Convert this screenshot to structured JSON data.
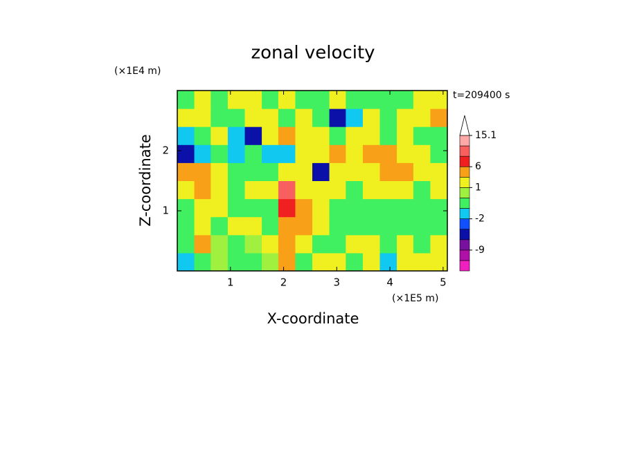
{
  "chart_data": {
    "type": "contour",
    "title": "zonal velocity",
    "y_multiplier": "(×1E4 m)",
    "x_multiplier": "(×1E5 m)",
    "time_label": "t=209400 s",
    "xlabel": "X-coordinate",
    "ylabel": "Z-coordinate",
    "xlim": [
      0,
      5.08
    ],
    "ylim": [
      0,
      3.0
    ],
    "xticks": [
      1,
      2,
      3,
      4,
      5
    ],
    "yticks": [
      1,
      2
    ],
    "field": {
      "x": [
        0.16,
        0.48,
        0.79,
        1.11,
        1.43,
        1.75,
        2.06,
        2.38,
        2.7,
        3.02,
        3.33,
        3.65,
        3.97,
        4.29,
        4.6,
        4.92
      ],
      "z": [
        0.15,
        0.45,
        0.75,
        1.05,
        1.35,
        1.65,
        1.95,
        2.25,
        2.55,
        2.85
      ],
      "values": [
        [
          -1.5,
          -0.5,
          0.5,
          -0.5,
          -0.5,
          0.5,
          4,
          -0.5,
          2,
          2,
          -0.5,
          2,
          -1.5,
          2,
          2,
          2
        ],
        [
          -0.5,
          4,
          0.5,
          -0.5,
          0.5,
          2,
          4,
          2,
          -0.5,
          -0.5,
          2,
          2,
          -0.5,
          2,
          -0.5,
          2
        ],
        [
          -0.5,
          2,
          -0.5,
          2,
          2,
          -0.5,
          4,
          4,
          2,
          -0.5,
          -0.5,
          -0.5,
          -0.5,
          -0.5,
          -0.5,
          -0.5
        ],
        [
          -0.5,
          2,
          2,
          -0.5,
          -0.5,
          -0.5,
          8,
          4,
          2,
          -0.5,
          -0.5,
          -0.5,
          -0.5,
          -0.5,
          -0.5,
          -0.5
        ],
        [
          2,
          4,
          2,
          -0.5,
          2,
          2,
          10,
          2,
          2,
          2,
          -0.5,
          2,
          2,
          2,
          -0.5,
          2
        ],
        [
          4,
          4,
          2,
          -0.5,
          -0.5,
          -0.5,
          2,
          2,
          -4.5,
          2,
          2,
          2,
          4,
          4,
          2,
          2
        ],
        [
          -4.5,
          -1.5,
          -0.5,
          -1.5,
          -0.5,
          -1.5,
          -1.5,
          2,
          2,
          4,
          2,
          4,
          4,
          2,
          2,
          -0.5
        ],
        [
          -1.5,
          -0.5,
          2,
          -1.5,
          -4.5,
          2,
          4,
          2,
          2,
          -0.5,
          2,
          2,
          -0.5,
          2,
          -0.5,
          -0.5
        ],
        [
          2,
          2,
          -0.5,
          -0.5,
          2,
          2,
          -0.5,
          2,
          -0.5,
          -4.5,
          -1.5,
          2,
          -0.5,
          2,
          2,
          4
        ],
        [
          -0.5,
          2,
          -0.5,
          2,
          2,
          -0.5,
          2,
          -0.5,
          -0.5,
          2,
          -0.5,
          -0.5,
          -0.5,
          -0.5,
          2,
          2
        ]
      ]
    },
    "levels": [
      -15,
      -12,
      -9,
      -6,
      -3,
      -2,
      -1,
      0,
      1,
      3,
      6,
      9,
      12,
      15.1
    ],
    "colors": [
      "#f020c0",
      "#b010a8",
      "#7810a0",
      "#0a10a8",
      "#1050ff",
      "#10c8f0",
      "#40f060",
      "#a0f040",
      "#f0f020",
      "#f8a018",
      "#f02020",
      "#f86060",
      "#ffa8a8"
    ],
    "over_color": "#ffffff",
    "cticks": [
      -9,
      -2,
      1,
      6,
      15.1
    ]
  }
}
